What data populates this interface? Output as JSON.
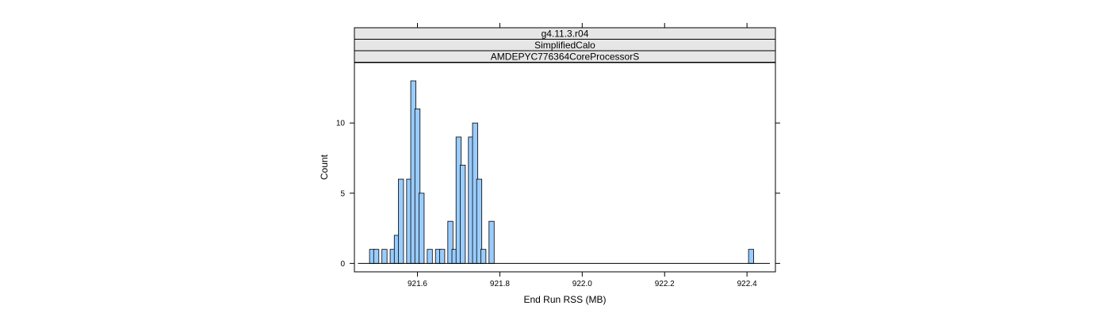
{
  "chart_data": {
    "type": "bar",
    "strips": [
      "g4.11.3.r04",
      "SimplifiedCalo",
      "AMDEPYC776364CoreProcessorS"
    ],
    "xlabel": "End Run RSS (MB)",
    "ylabel": "Count",
    "xlim": [
      921.447,
      922.469
    ],
    "ylim": [
      -0.6,
      14.3
    ],
    "xticks": [
      921.6,
      921.8,
      922.0,
      922.2,
      922.4
    ],
    "xtick_labels": [
      "921.6",
      "921.8",
      "922.0",
      "922.2",
      "922.4"
    ],
    "yticks": [
      0,
      5,
      10
    ],
    "ytick_labels": [
      "0",
      "5",
      "10"
    ],
    "baseline_range": [
      921.4555,
      922.4555
    ],
    "bin_width": 0.0125,
    "bars": [
      {
        "x": 921.49,
        "count": 1
      },
      {
        "x": 921.5,
        "count": 1
      },
      {
        "x": 921.52,
        "count": 1
      },
      {
        "x": 921.54,
        "count": 1
      },
      {
        "x": 921.55,
        "count": 2
      },
      {
        "x": 921.56,
        "count": 6
      },
      {
        "x": 921.58,
        "count": 6
      },
      {
        "x": 921.59,
        "count": 13
      },
      {
        "x": 921.6,
        "count": 11
      },
      {
        "x": 921.61,
        "count": 5
      },
      {
        "x": 921.63,
        "count": 1
      },
      {
        "x": 921.65,
        "count": 1
      },
      {
        "x": 921.66,
        "count": 1
      },
      {
        "x": 921.68,
        "count": 3
      },
      {
        "x": 921.69,
        "count": 1
      },
      {
        "x": 921.7,
        "count": 9
      },
      {
        "x": 921.71,
        "count": 7
      },
      {
        "x": 921.73,
        "count": 9
      },
      {
        "x": 921.74,
        "count": 10
      },
      {
        "x": 921.75,
        "count": 6
      },
      {
        "x": 921.76,
        "count": 1
      },
      {
        "x": 921.78,
        "count": 3
      },
      {
        "x": 922.41,
        "count": 1
      }
    ],
    "colors": {
      "bar_fill": "#99CCFF",
      "strip_fill": "#E6E6E6",
      "outline": "#000000"
    }
  }
}
